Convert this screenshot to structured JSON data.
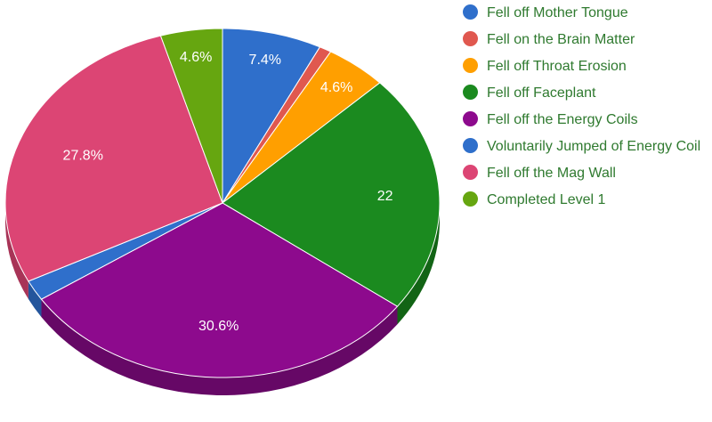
{
  "chart_data": {
    "type": "pie",
    "title": "",
    "series": [
      {
        "name": "Fell off Mother Tongue",
        "value": 7.4,
        "label": "7.4%",
        "color": "#2f6fcb",
        "side": "#24559c"
      },
      {
        "name": "Fell on the Brain Matter",
        "value": 0.9,
        "label": "",
        "color": "#e0584f",
        "side": "#a8423b"
      },
      {
        "name": "Fell off Throat Erosion",
        "value": 4.6,
        "label": "4.6%",
        "color": "#ff9f00",
        "side": "#c27800"
      },
      {
        "name": "Fell off Faceplant",
        "value": 22.2,
        "label": "22",
        "color": "#1b8a1f",
        "side": "#126415"
      },
      {
        "name": "Fell off the Energy Coils",
        "value": 30.6,
        "label": "30.6%",
        "color": "#8d0a8d",
        "side": "#660866"
      },
      {
        "name": "Voluntarily Jumped of Energy Coil",
        "value": 1.9,
        "label": "",
        "color": "#2f6fcb",
        "side": "#24559c"
      },
      {
        "name": "Fell off the Mag Wall",
        "value": 27.8,
        "label": "27.8%",
        "color": "#dc4574",
        "side": "#a83457"
      },
      {
        "name": "Completed Level 1",
        "value": 4.6,
        "label": "4.6%",
        "color": "#66a610",
        "side": "#4c7c0c"
      }
    ],
    "legend_position": "right"
  }
}
